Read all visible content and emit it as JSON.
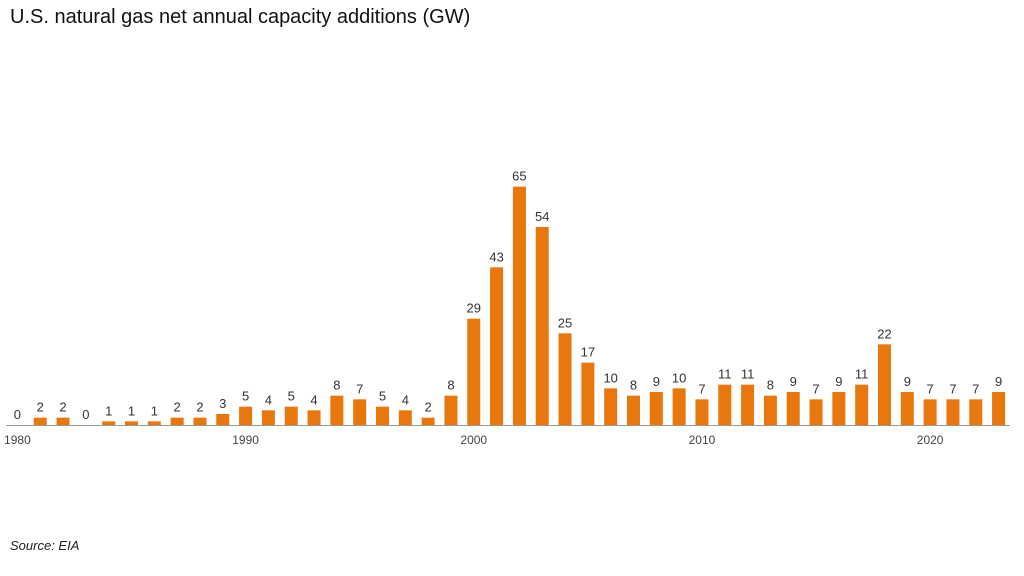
{
  "title": "U.S. natural gas net annual capacity additions (GW)",
  "source": "Source: EIA",
  "colors": {
    "bar": "#E8770D",
    "axis": "#999999"
  },
  "chart_data": {
    "type": "bar",
    "title": "U.S. natural gas net annual capacity additions (GW)",
    "xlabel": "",
    "ylabel": "",
    "categories": [
      1980,
      1981,
      1982,
      1983,
      1984,
      1985,
      1986,
      1987,
      1988,
      1989,
      1990,
      1991,
      1992,
      1993,
      1994,
      1995,
      1996,
      1997,
      1998,
      1999,
      2000,
      2001,
      2002,
      2003,
      2004,
      2005,
      2006,
      2007,
      2008,
      2009,
      2010,
      2011,
      2012,
      2013,
      2014,
      2015,
      2016,
      2017,
      2018,
      2019,
      2020,
      2021,
      2022,
      2023
    ],
    "values": [
      0,
      2,
      2,
      0,
      1,
      1,
      1,
      2,
      2,
      3,
      5,
      4,
      5,
      4,
      8,
      7,
      5,
      4,
      2,
      8,
      29,
      43,
      65,
      54,
      25,
      17,
      10,
      8,
      9,
      10,
      7,
      11,
      11,
      8,
      9,
      7,
      9,
      11,
      22,
      9,
      7,
      7,
      7,
      9
    ],
    "x_tick_labels": [
      "1980",
      "1990",
      "2000",
      "2010",
      "2020"
    ],
    "data_labels": true,
    "grid": false,
    "legend": "none"
  }
}
